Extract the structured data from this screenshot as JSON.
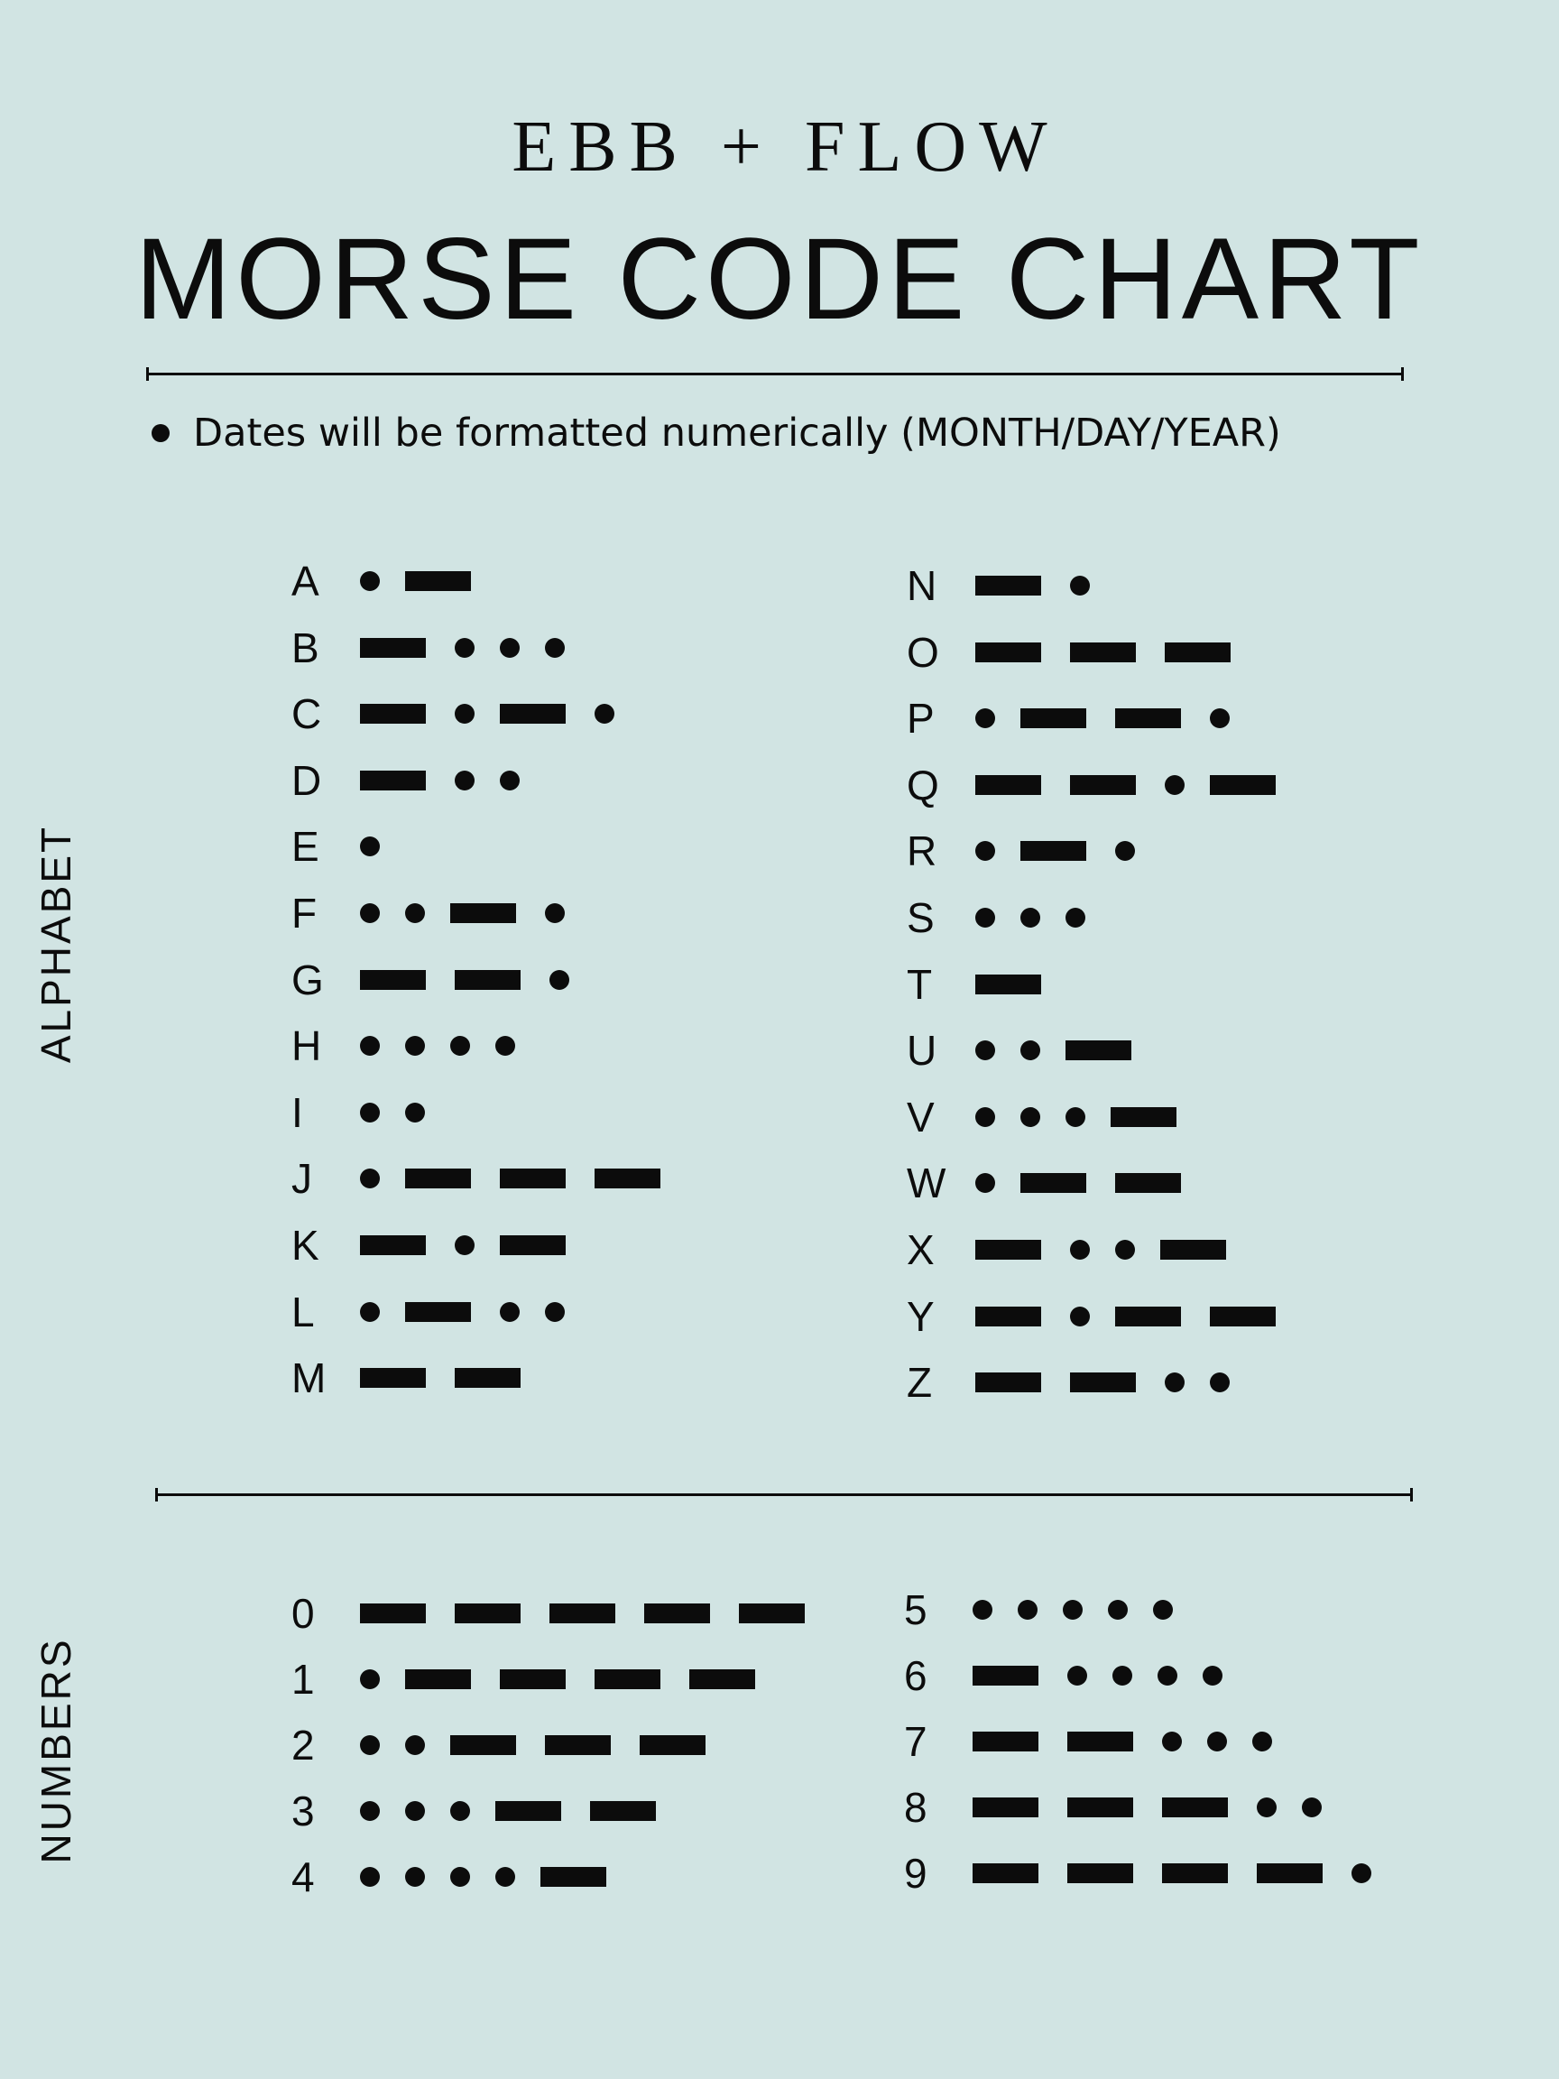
{
  "header": {
    "brand": "EBB + FLOW",
    "title": "MORSE CODE CHART"
  },
  "note": "Dates will be formatted numerically (MONTH/DAY/YEAR)",
  "sections": {
    "alphabet_label": "ALPHABET",
    "numbers_label": "NUMBERS"
  },
  "alphabet_left": [
    {
      "char": "A",
      "code": ".-"
    },
    {
      "char": "B",
      "code": "-..."
    },
    {
      "char": "C",
      "code": "-.-."
    },
    {
      "char": "D",
      "code": "-.."
    },
    {
      "char": "E",
      "code": "."
    },
    {
      "char": "F",
      "code": "..-."
    },
    {
      "char": "G",
      "code": "--."
    },
    {
      "char": "H",
      "code": "...."
    },
    {
      "char": "I",
      "code": ".."
    },
    {
      "char": "J",
      "code": ".---"
    },
    {
      "char": "K",
      "code": "-.-"
    },
    {
      "char": "L",
      "code": ".-.."
    },
    {
      "char": "M",
      "code": "--"
    }
  ],
  "alphabet_right": [
    {
      "char": "N",
      "code": "-."
    },
    {
      "char": "O",
      "code": "---"
    },
    {
      "char": "P",
      "code": ".--."
    },
    {
      "char": "Q",
      "code": "--.-"
    },
    {
      "char": "R",
      "code": ".-."
    },
    {
      "char": "S",
      "code": "..."
    },
    {
      "char": "T",
      "code": "-"
    },
    {
      "char": "U",
      "code": "..-"
    },
    {
      "char": "V",
      "code": "...-"
    },
    {
      "char": "W",
      "code": ".--"
    },
    {
      "char": "X",
      "code": "-..-"
    },
    {
      "char": "Y",
      "code": "-.--"
    },
    {
      "char": "Z",
      "code": "--.."
    }
  ],
  "numbers_left": [
    {
      "char": "0",
      "code": "-----"
    },
    {
      "char": "1",
      "code": ".----"
    },
    {
      "char": "2",
      "code": "..---"
    },
    {
      "char": "3",
      "code": "...--"
    },
    {
      "char": "4",
      "code": "....-"
    }
  ],
  "numbers_right": [
    {
      "char": "5",
      "code": "....."
    },
    {
      "char": "6",
      "code": "-...."
    },
    {
      "char": "7",
      "code": "--..."
    },
    {
      "char": "8",
      "code": "---.."
    },
    {
      "char": "9",
      "code": "----."
    }
  ],
  "colors": {
    "background": "#d1e4e3",
    "ink": "#0c0c0c"
  }
}
